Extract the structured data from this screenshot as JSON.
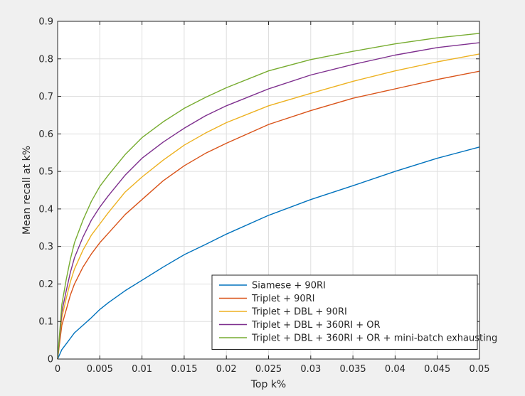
{
  "chart_data": {
    "type": "line",
    "xlabel": "Top k%",
    "ylabel": "Mean recall at k%",
    "xlim": [
      0,
      0.05
    ],
    "ylim": [
      0,
      0.9
    ],
    "xticks": [
      0,
      0.005,
      0.01,
      0.015,
      0.02,
      0.025,
      0.03,
      0.035,
      0.04,
      0.045,
      0.05
    ],
    "xtick_labels": [
      "0",
      "0.005",
      "0.01",
      "0.015",
      "0.02",
      "0.025",
      "0.03",
      "0.035",
      "0.04",
      "0.045",
      "0.05"
    ],
    "yticks": [
      0,
      0.1,
      0.2,
      0.3,
      0.4,
      0.5,
      0.6,
      0.7,
      0.8,
      0.9
    ],
    "ytick_labels": [
      "0",
      "0.1",
      "0.2",
      "0.3",
      "0.4",
      "0.5",
      "0.6",
      "0.7",
      "0.8",
      "0.9"
    ],
    "grid": true,
    "legend_position": "bottom-right",
    "series": [
      {
        "name": "Siamese + 90RI",
        "color": "#0072BD",
        "x": [
          0,
          0.0005,
          0.001,
          0.0015,
          0.002,
          0.003,
          0.004,
          0.005,
          0.006,
          0.008,
          0.01,
          0.0125,
          0.015,
          0.0175,
          0.02,
          0.025,
          0.03,
          0.035,
          0.04,
          0.045,
          0.05
        ],
        "y": [
          0,
          0.025,
          0.04,
          0.055,
          0.07,
          0.09,
          0.11,
          0.132,
          0.15,
          0.182,
          0.21,
          0.245,
          0.278,
          0.305,
          0.333,
          0.383,
          0.425,
          0.462,
          0.5,
          0.535,
          0.565
        ]
      },
      {
        "name": "Triplet + 90RI",
        "color": "#D95319",
        "x": [
          0,
          0.0005,
          0.001,
          0.0015,
          0.002,
          0.003,
          0.004,
          0.005,
          0.006,
          0.008,
          0.01,
          0.0125,
          0.015,
          0.0175,
          0.02,
          0.025,
          0.03,
          0.035,
          0.04,
          0.045,
          0.05
        ],
        "y": [
          0,
          0.09,
          0.13,
          0.17,
          0.2,
          0.245,
          0.28,
          0.31,
          0.335,
          0.385,
          0.425,
          0.475,
          0.515,
          0.548,
          0.575,
          0.625,
          0.662,
          0.695,
          0.72,
          0.745,
          0.767
        ]
      },
      {
        "name": "Triplet + DBL + 90RI",
        "color": "#EDB120",
        "x": [
          0,
          0.0005,
          0.001,
          0.0015,
          0.002,
          0.003,
          0.004,
          0.005,
          0.006,
          0.008,
          0.01,
          0.0125,
          0.015,
          0.0175,
          0.02,
          0.025,
          0.03,
          0.035,
          0.04,
          0.045,
          0.05
        ],
        "y": [
          0,
          0.11,
          0.16,
          0.205,
          0.24,
          0.29,
          0.33,
          0.36,
          0.39,
          0.445,
          0.485,
          0.53,
          0.57,
          0.602,
          0.63,
          0.675,
          0.708,
          0.74,
          0.768,
          0.792,
          0.813
        ]
      },
      {
        "name": "Triplet + DBL + 360RI + OR",
        "color": "#7E2F8E",
        "x": [
          0,
          0.0005,
          0.001,
          0.0015,
          0.002,
          0.003,
          0.004,
          0.005,
          0.006,
          0.008,
          0.01,
          0.0125,
          0.015,
          0.0175,
          0.02,
          0.025,
          0.03,
          0.035,
          0.04,
          0.045,
          0.05
        ],
        "y": [
          0,
          0.125,
          0.18,
          0.23,
          0.27,
          0.325,
          0.37,
          0.405,
          0.435,
          0.49,
          0.535,
          0.578,
          0.615,
          0.648,
          0.675,
          0.72,
          0.757,
          0.785,
          0.81,
          0.83,
          0.843
        ]
      },
      {
        "name": "Triplet + DBL + 360RI + OR + mini-batch exhausting",
        "color": "#77AC30",
        "x": [
          0,
          0.0005,
          0.001,
          0.0015,
          0.002,
          0.003,
          0.004,
          0.005,
          0.006,
          0.008,
          0.01,
          0.0125,
          0.015,
          0.0175,
          0.02,
          0.025,
          0.03,
          0.035,
          0.04,
          0.045,
          0.05
        ],
        "y": [
          0,
          0.145,
          0.21,
          0.265,
          0.31,
          0.37,
          0.42,
          0.46,
          0.49,
          0.545,
          0.59,
          0.632,
          0.668,
          0.697,
          0.723,
          0.768,
          0.798,
          0.82,
          0.84,
          0.856,
          0.868
        ]
      }
    ]
  }
}
